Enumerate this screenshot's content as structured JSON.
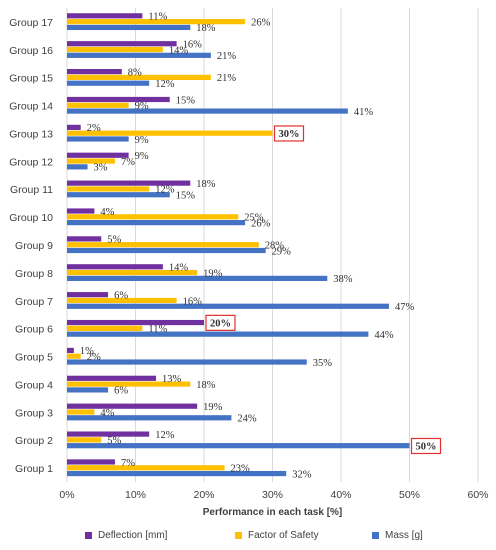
{
  "chart_data": {
    "type": "bar",
    "orientation": "horizontal",
    "categories": [
      "Group 1",
      "Group 2",
      "Group 3",
      "Group 4",
      "Group 5",
      "Group 6",
      "Group 7",
      "Group 8",
      "Group 9",
      "Group 10",
      "Group 11",
      "Group 12",
      "Group 13",
      "Group 14",
      "Group 15",
      "Group 16",
      "Group 17"
    ],
    "series": [
      {
        "name": "Deflection [mm]",
        "color": "#7030A0",
        "values": [
          7,
          12,
          19,
          13,
          1,
          20,
          6,
          14,
          5,
          4,
          18,
          9,
          2,
          15,
          8,
          16,
          11
        ],
        "labels": [
          "7%",
          "12%",
          "19%",
          "13%",
          "1%",
          "20%",
          "6%",
          "14%",
          "5%",
          "4%",
          "18%",
          "9%",
          "2%",
          "15%",
          "8%",
          "16%",
          "11%"
        ]
      },
      {
        "name": "Factor of Safety",
        "color": "#FFC000",
        "values": [
          23,
          5,
          4,
          18,
          2,
          11,
          16,
          19,
          28,
          25,
          12,
          7,
          30,
          9,
          21,
          14,
          26
        ],
        "labels": [
          "23%",
          "5%",
          "4%",
          "18%",
          "2%",
          "11%",
          "16%",
          "19%",
          "28%",
          "25%",
          "12%",
          "7%",
          "30%",
          "9%",
          "21%",
          "14%",
          "26%"
        ]
      },
      {
        "name": "Mass [g]",
        "color": "#4472C4",
        "values": [
          32,
          50,
          24,
          6,
          35,
          44,
          47,
          38,
          29,
          26,
          15,
          3,
          9,
          41,
          12,
          21,
          18
        ],
        "labels": [
          "32%",
          "50%",
          "24%",
          "6%",
          "35%",
          "44%",
          "47%",
          "38%",
          "29%",
          "26%",
          "15%",
          "3%",
          "9%",
          "41%",
          "12%",
          "21%",
          "18%"
        ]
      }
    ],
    "highlighted": [
      {
        "category": "Group 2",
        "series": 2
      },
      {
        "category": "Group 6",
        "series": 0
      },
      {
        "category": "Group 13",
        "series": 1
      }
    ],
    "highlight_color": "#E03030",
    "xlim": [
      0,
      60
    ],
    "xticks": [
      0,
      10,
      20,
      30,
      40,
      50,
      60
    ],
    "xtick_labels": [
      "0%",
      "10%",
      "20%",
      "30%",
      "40%",
      "50%",
      "60%"
    ],
    "xlabel": "Performance in each task [%]",
    "ylabel": "",
    "title": "",
    "grid": true,
    "legend_position": "bottom"
  }
}
